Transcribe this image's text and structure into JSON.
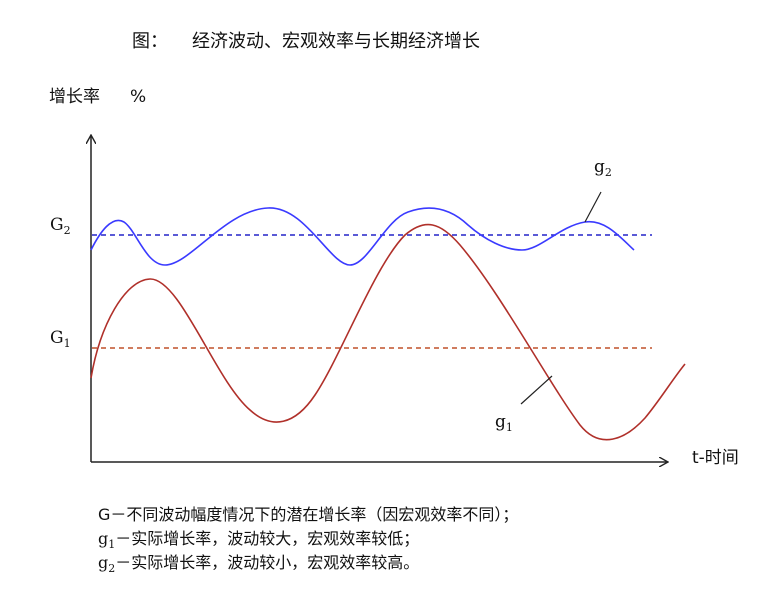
{
  "figure": {
    "title_prefix": "图：",
    "title_text": "经济波动、宏观效率与长期经济增长"
  },
  "axes": {
    "y_label": "增长率",
    "y_unit": "%",
    "x_label": "t-时间"
  },
  "levels": {
    "G2": {
      "letter": "G",
      "sub": "2"
    },
    "G1": {
      "letter": "G",
      "sub": "1"
    }
  },
  "curves": {
    "g2": {
      "letter": "g",
      "sub": "2"
    },
    "g1": {
      "letter": "g",
      "sub": "1"
    }
  },
  "legend": {
    "line1_text": "G－不同波动幅度情况下的潜在增长率（因宏观效率不同）；",
    "line2_letter": "g",
    "line2_sub": "1",
    "line2_text": "－实际增长率，波动较大，宏观效率较低；",
    "line3_letter": "g",
    "line3_sub": "2",
    "line3_text": "－实际增长率，波动较小，宏观效率较高。"
  },
  "colors": {
    "g2_curve": "#3a3aff",
    "g1_curve": "#b0302a",
    "G2_dash": "#2424c8",
    "G1_dash": "#c0502a",
    "axis": "#222222"
  }
}
